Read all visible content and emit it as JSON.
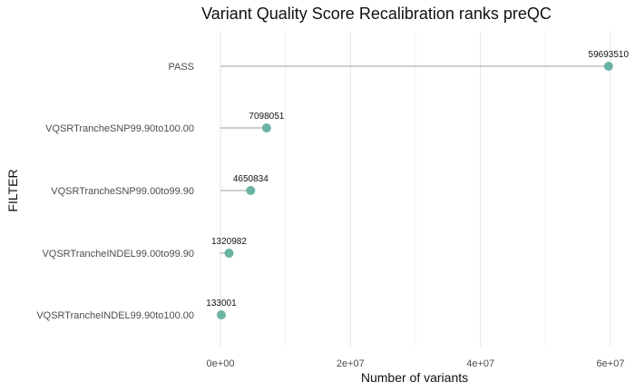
{
  "chart_data": {
    "type": "scatter",
    "title": "Variant Quality Score Recalibration ranks preQC",
    "xlabel": "Number of variants",
    "ylabel": "FILTER",
    "categories": [
      "PASS",
      "VQSRTrancheSNP99.90to100.00",
      "VQSRTrancheSNP99.00to99.90",
      "VQSRTrancheINDEL99.00to99.90",
      "VQSRTrancheINDEL99.90to100.00"
    ],
    "values": [
      59693510,
      7098051,
      4650834,
      1320982,
      133001
    ],
    "data_labels": [
      "59693510",
      "7098051",
      "4650834",
      "1320982",
      "133001"
    ],
    "xlim": [
      0,
      60000000
    ],
    "xticks": [
      0,
      20000000,
      40000000,
      60000000
    ],
    "xtick_labels": [
      "0e+00",
      "2e+07",
      "4e+07",
      "6e+07"
    ],
    "grid": true,
    "point_color": "#69b3a2",
    "stem_color": "#bdbdbd"
  }
}
